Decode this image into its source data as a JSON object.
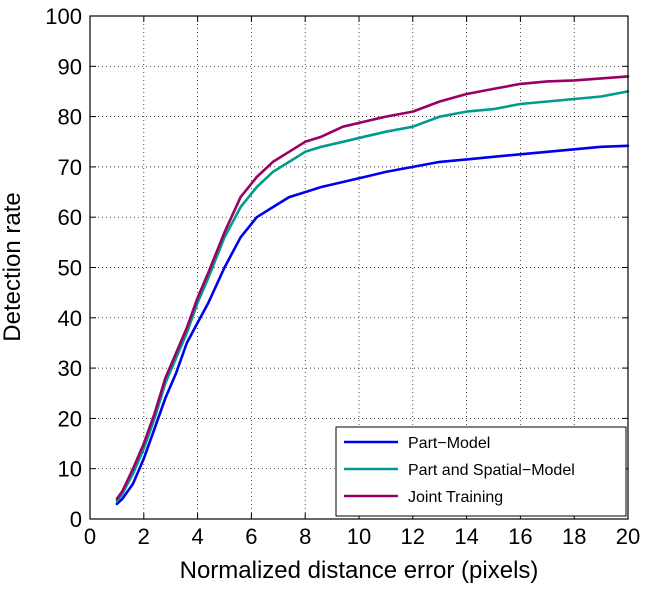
{
  "chart_data": {
    "type": "line",
    "title": "",
    "xlabel": "Normalized distance error (pixels)",
    "ylabel": "Detection rate",
    "xlim": [
      0,
      20
    ],
    "ylim": [
      0,
      100
    ],
    "xticks": [
      0,
      2,
      4,
      6,
      8,
      10,
      12,
      14,
      16,
      18,
      20
    ],
    "yticks": [
      0,
      10,
      20,
      30,
      40,
      50,
      60,
      70,
      80,
      90,
      100
    ],
    "grid": true,
    "legend_position": "bottom-right",
    "series": [
      {
        "name": "Part−Model",
        "color": "#0000ee",
        "x": [
          1,
          1.2,
          1.6,
          2.0,
          2.4,
          2.8,
          3.2,
          3.6,
          4.0,
          4.4,
          5.0,
          5.6,
          6.2,
          6.8,
          7.4,
          8.0,
          8.6,
          9.4,
          10.2,
          11.0,
          12.0,
          13.0,
          14.0,
          15.0,
          16.0,
          17.0,
          18.0,
          19.0,
          20.0
        ],
        "y": [
          3,
          4,
          7,
          12,
          18,
          24,
          29,
          35,
          39,
          43,
          50,
          56,
          60,
          62,
          64,
          65,
          66,
          67,
          68,
          69,
          70,
          71,
          71.5,
          72,
          72.5,
          73,
          73.5,
          74,
          74.2
        ]
      },
      {
        "name": "Part and Spatial−Model",
        "color": "#009b8e",
        "x": [
          1,
          1.2,
          1.6,
          2.0,
          2.4,
          2.8,
          3.2,
          3.6,
          4.0,
          4.4,
          5.0,
          5.6,
          6.2,
          6.8,
          7.4,
          8.0,
          8.6,
          9.4,
          10.2,
          11.0,
          12.0,
          13.0,
          14.0,
          15.0,
          16.0,
          17.0,
          18.0,
          19.0,
          20.0
        ],
        "y": [
          3.5,
          5,
          9,
          14,
          20,
          27,
          32,
          37,
          43,
          48,
          56,
          62,
          66,
          69,
          71,
          73,
          74,
          75,
          76,
          77,
          78,
          80,
          81,
          81.5,
          82.5,
          83,
          83.5,
          84,
          85
        ]
      },
      {
        "name": "Joint Training",
        "color": "#990066",
        "x": [
          1,
          1.2,
          1.6,
          2.0,
          2.4,
          2.8,
          3.2,
          3.6,
          4.0,
          4.4,
          5.0,
          5.6,
          6.2,
          6.8,
          7.4,
          8.0,
          8.6,
          9.4,
          10.2,
          11.0,
          12.0,
          13.0,
          14.0,
          15.0,
          16.0,
          17.0,
          18.0,
          19.0,
          20.0
        ],
        "y": [
          4,
          5.5,
          10,
          15,
          21,
          28,
          33,
          38,
          44,
          49,
          57,
          64,
          68,
          71,
          73,
          75,
          76,
          78,
          79,
          80,
          81,
          83,
          84.5,
          85.5,
          86.5,
          87,
          87.2,
          87.6,
          88
        ]
      }
    ]
  }
}
